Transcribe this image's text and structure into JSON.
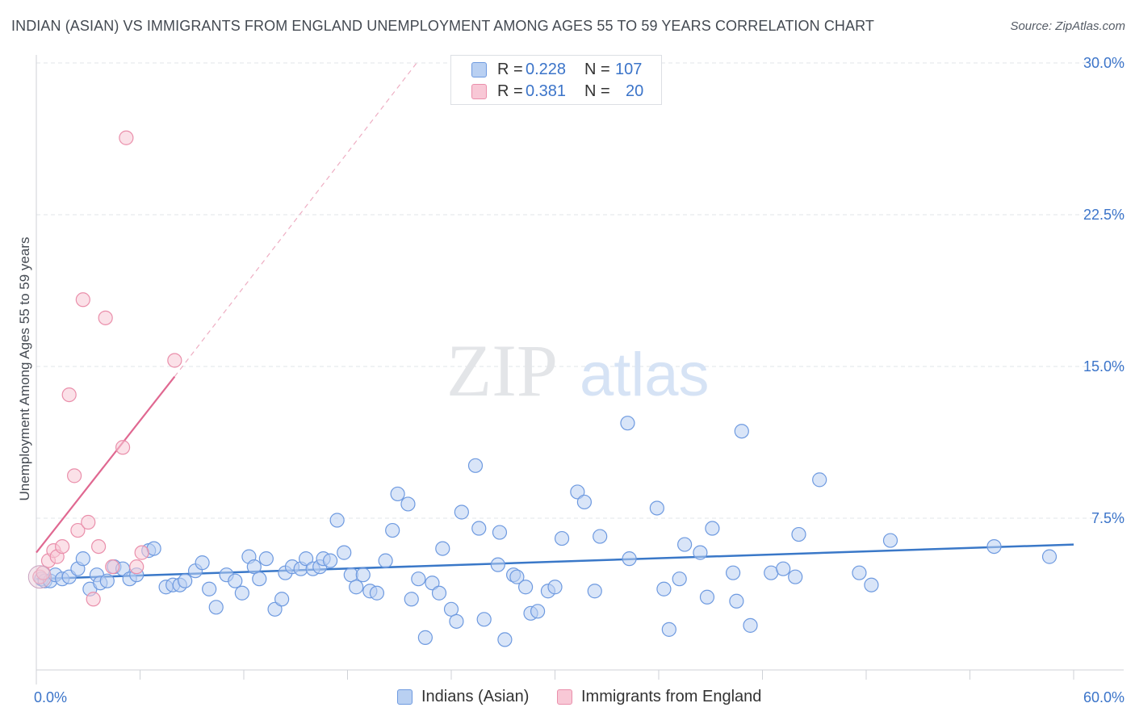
{
  "title": "INDIAN (ASIAN) VS IMMIGRANTS FROM ENGLAND UNEMPLOYMENT AMONG AGES 55 TO 59 YEARS CORRELATION CHART",
  "source": "Source: ZipAtlas.com",
  "watermark": {
    "zip": "ZIP",
    "atlas": "atlas"
  },
  "legend": {
    "r_label": "R =",
    "n_label": "N =",
    "rows": [
      {
        "r": "0.228",
        "n": "107"
      },
      {
        "r": "0.381",
        "n": "20"
      }
    ]
  },
  "chart_data": {
    "type": "scatter",
    "xlabel": "",
    "ylabel": "Unemployment Among Ages 55 to 59 years",
    "xlim": [
      0,
      60
    ],
    "ylim": [
      0,
      30
    ],
    "x_ticks": [
      0,
      6,
      12,
      18,
      24,
      30,
      36,
      42,
      48,
      54,
      60
    ],
    "x_tick_labels": {
      "left": "0.0%",
      "right": "60.0%"
    },
    "y_ticks": [
      7.5,
      15.0,
      22.5,
      30.0
    ],
    "y_tick_labels": [
      "7.5%",
      "15.0%",
      "22.5%",
      "30.0%"
    ],
    "grid": true,
    "legend_position": "top-center",
    "series": [
      {
        "name": "Indians (Asian)",
        "color": "#6e9ae0",
        "fill": "#b9d0f2",
        "trend": {
          "x": [
            0,
            60
          ],
          "y": [
            4.5,
            6.2
          ],
          "style": "solid"
        },
        "points": [
          [
            0.3,
            4.5
          ],
          [
            0.5,
            4.4
          ],
          [
            0.8,
            4.4
          ],
          [
            1.1,
            4.7
          ],
          [
            1.5,
            4.5
          ],
          [
            1.9,
            4.6
          ],
          [
            2.4,
            5.0
          ],
          [
            2.7,
            5.5
          ],
          [
            3.1,
            4.0
          ],
          [
            3.5,
            4.7
          ],
          [
            3.7,
            4.3
          ],
          [
            4.1,
            4.4
          ],
          [
            4.5,
            5.1
          ],
          [
            5.0,
            5.0
          ],
          [
            5.4,
            4.5
          ],
          [
            5.8,
            4.7
          ],
          [
            6.5,
            5.9
          ],
          [
            6.8,
            6.0
          ],
          [
            7.5,
            4.1
          ],
          [
            7.9,
            4.2
          ],
          [
            8.3,
            4.2
          ],
          [
            8.6,
            4.4
          ],
          [
            9.2,
            4.9
          ],
          [
            9.6,
            5.3
          ],
          [
            10.0,
            4.0
          ],
          [
            10.4,
            3.1
          ],
          [
            11.0,
            4.7
          ],
          [
            11.5,
            4.4
          ],
          [
            11.9,
            3.8
          ],
          [
            12.3,
            5.6
          ],
          [
            12.6,
            5.1
          ],
          [
            12.9,
            4.5
          ],
          [
            13.3,
            5.5
          ],
          [
            13.8,
            3.0
          ],
          [
            14.2,
            3.5
          ],
          [
            14.4,
            4.8
          ],
          [
            14.8,
            5.1
          ],
          [
            15.3,
            5.0
          ],
          [
            15.6,
            5.5
          ],
          [
            16.0,
            5.0
          ],
          [
            16.4,
            5.1
          ],
          [
            16.6,
            5.5
          ],
          [
            17.0,
            5.4
          ],
          [
            17.4,
            7.4
          ],
          [
            17.8,
            5.8
          ],
          [
            18.2,
            4.7
          ],
          [
            18.5,
            4.1
          ],
          [
            18.9,
            4.7
          ],
          [
            19.3,
            3.9
          ],
          [
            19.7,
            3.8
          ],
          [
            20.2,
            5.4
          ],
          [
            20.6,
            6.9
          ],
          [
            20.9,
            8.7
          ],
          [
            21.5,
            8.2
          ],
          [
            21.7,
            3.5
          ],
          [
            22.1,
            4.5
          ],
          [
            22.5,
            1.6
          ],
          [
            22.9,
            4.3
          ],
          [
            23.3,
            3.8
          ],
          [
            23.5,
            6.0
          ],
          [
            24.0,
            3.0
          ],
          [
            24.3,
            2.4
          ],
          [
            24.6,
            7.8
          ],
          [
            25.4,
            10.1
          ],
          [
            25.6,
            7.0
          ],
          [
            25.9,
            2.5
          ],
          [
            26.7,
            5.2
          ],
          [
            26.8,
            6.8
          ],
          [
            27.1,
            1.5
          ],
          [
            27.6,
            4.7
          ],
          [
            27.8,
            4.6
          ],
          [
            28.3,
            4.1
          ],
          [
            28.6,
            2.8
          ],
          [
            29.0,
            2.9
          ],
          [
            29.6,
            3.9
          ],
          [
            30.0,
            4.1
          ],
          [
            30.4,
            6.5
          ],
          [
            31.3,
            8.8
          ],
          [
            31.7,
            8.3
          ],
          [
            32.3,
            3.9
          ],
          [
            32.6,
            6.6
          ],
          [
            34.2,
            12.2
          ],
          [
            34.3,
            5.5
          ],
          [
            35.9,
            8.0
          ],
          [
            36.3,
            4.0
          ],
          [
            36.6,
            2.0
          ],
          [
            37.2,
            4.5
          ],
          [
            37.5,
            6.2
          ],
          [
            38.4,
            5.8
          ],
          [
            38.8,
            3.6
          ],
          [
            39.1,
            7.0
          ],
          [
            40.3,
            4.8
          ],
          [
            40.5,
            3.4
          ],
          [
            40.8,
            11.8
          ],
          [
            41.3,
            2.2
          ],
          [
            42.5,
            4.8
          ],
          [
            43.2,
            5.0
          ],
          [
            43.9,
            4.6
          ],
          [
            44.1,
            6.7
          ],
          [
            45.3,
            9.4
          ],
          [
            47.6,
            4.8
          ],
          [
            48.3,
            4.2
          ],
          [
            49.4,
            6.4
          ],
          [
            55.4,
            6.1
          ],
          [
            58.6,
            5.6
          ]
        ]
      },
      {
        "name": "Immigrants from England",
        "color": "#ea8fab",
        "fill": "#f8c8d6",
        "trend": {
          "x": [
            0,
            8
          ],
          "y": [
            5.8,
            14.5
          ],
          "style": "solid",
          "extension": {
            "x": [
              8,
              22
            ],
            "y": [
              14.5,
              30
            ],
            "style": "dashed"
          }
        },
        "points": [
          [
            0.2,
            4.6
          ],
          [
            0.4,
            4.8
          ],
          [
            0.7,
            5.4
          ],
          [
            1.0,
            5.9
          ],
          [
            1.2,
            5.6
          ],
          [
            1.5,
            6.1
          ],
          [
            1.9,
            13.6
          ],
          [
            2.2,
            9.6
          ],
          [
            2.4,
            6.9
          ],
          [
            2.7,
            18.3
          ],
          [
            3.0,
            7.3
          ],
          [
            3.3,
            3.5
          ],
          [
            3.6,
            6.1
          ],
          [
            4.0,
            17.4
          ],
          [
            4.4,
            5.1
          ],
          [
            5.0,
            11.0
          ],
          [
            5.2,
            26.3
          ],
          [
            5.8,
            5.1
          ],
          [
            6.1,
            5.8
          ],
          [
            8.0,
            15.3
          ]
        ]
      }
    ]
  }
}
